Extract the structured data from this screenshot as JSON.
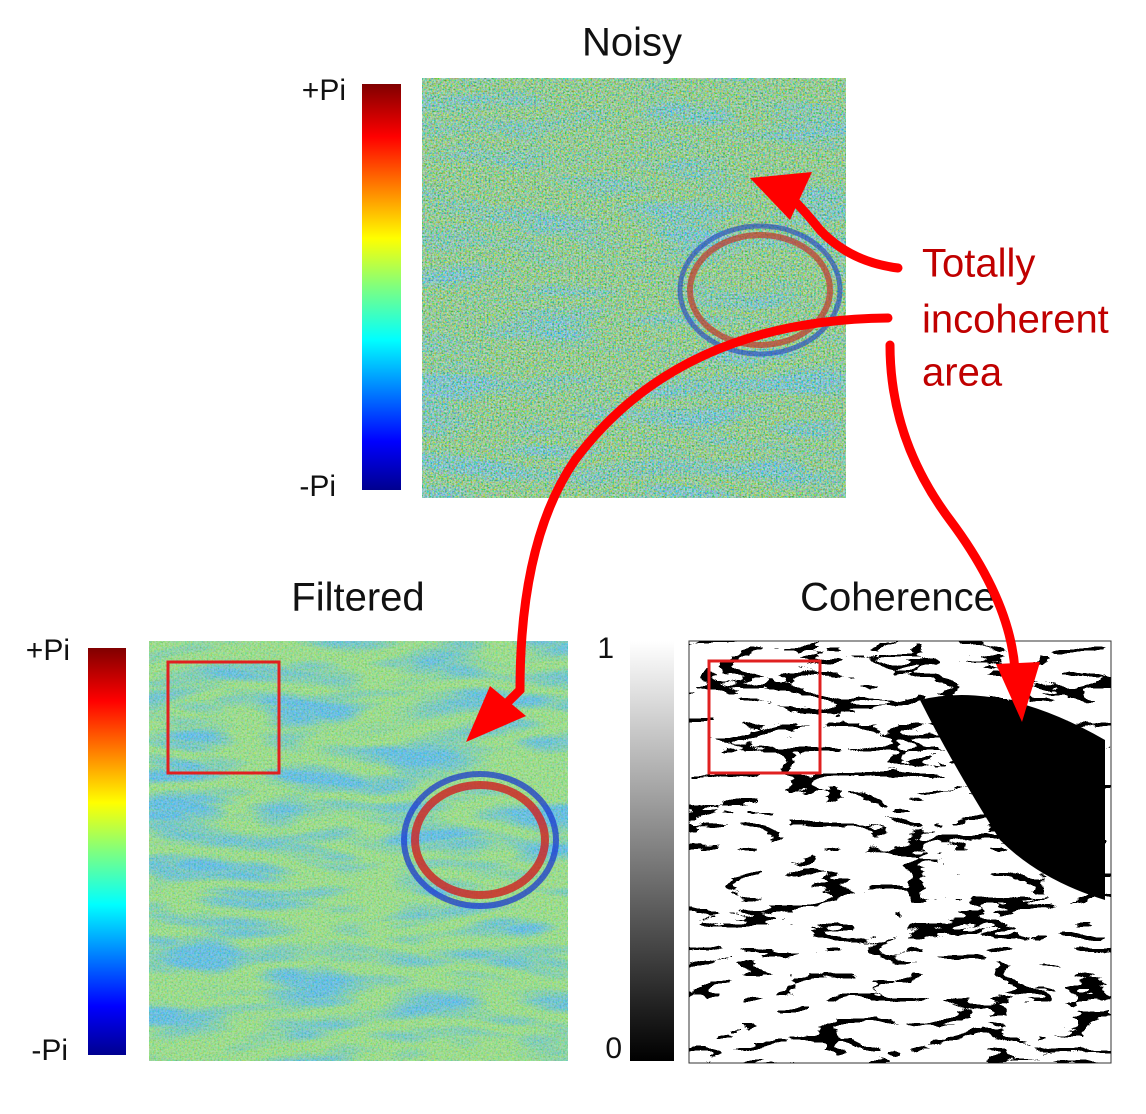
{
  "panels": [
    {
      "title": "Noisy",
      "colorbar_top": "+Pi",
      "colorbar_bottom": "-Pi"
    },
    {
      "title": "Filtered",
      "colorbar_top": "+Pi",
      "colorbar_bottom": "-Pi"
    },
    {
      "title": "Coherence",
      "colorbar_top": "1",
      "colorbar_bottom": "0"
    }
  ],
  "annotation": {
    "lines": [
      "Totally",
      "incoherent",
      "area"
    ]
  }
}
